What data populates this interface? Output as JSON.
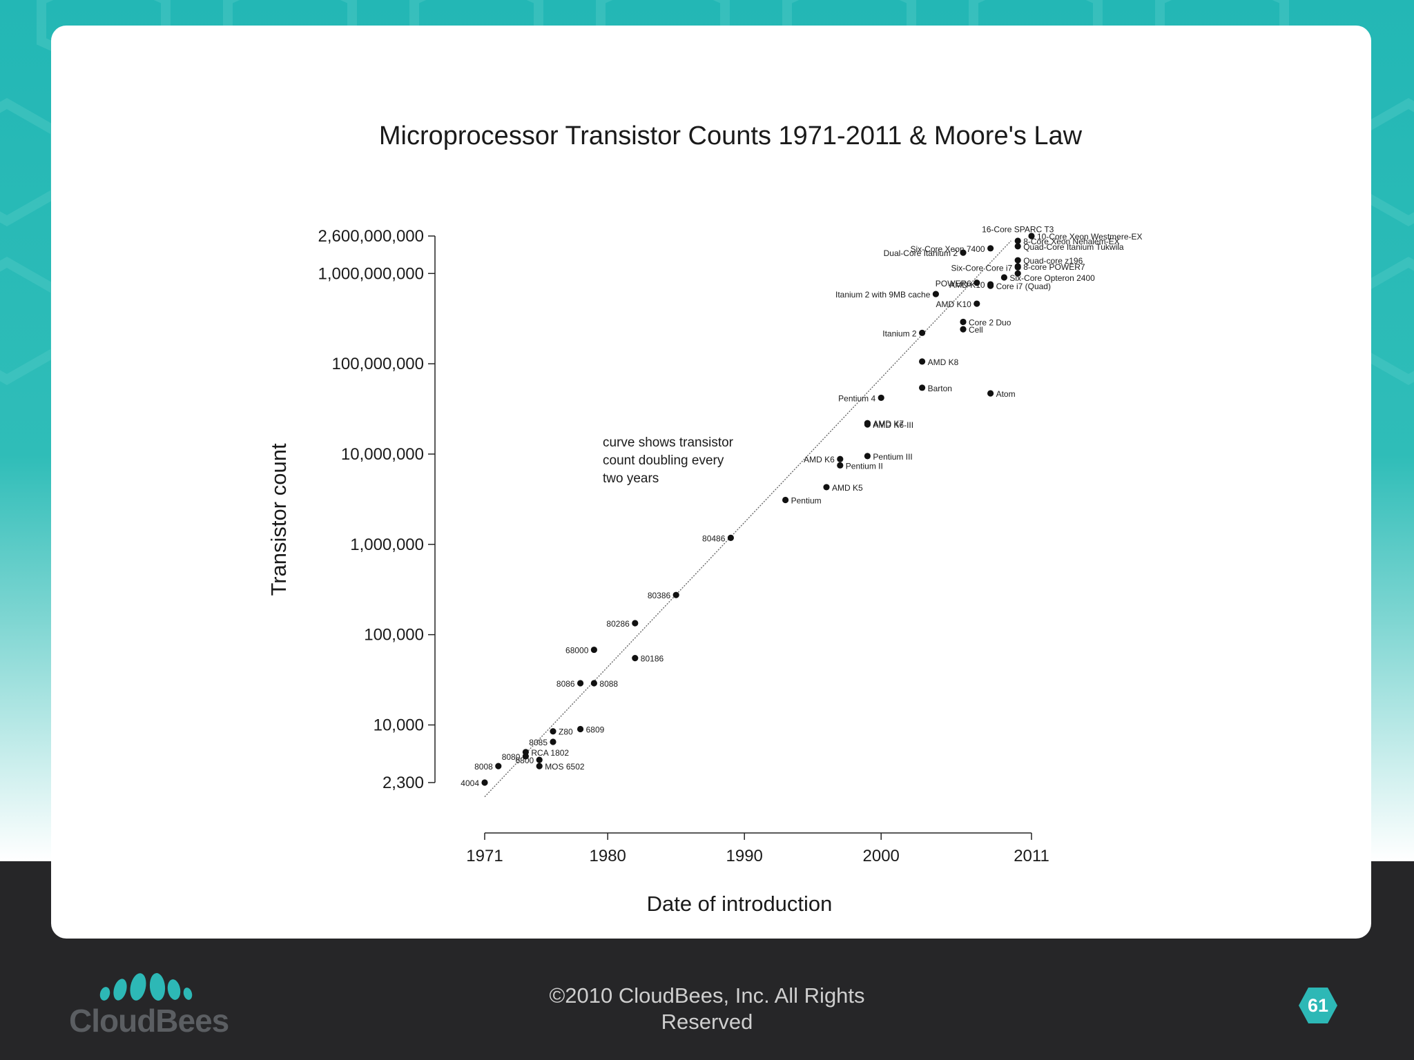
{
  "colors": {
    "accent": "#23b7b5",
    "footer_bg": "#262628",
    "text": "#1a1a1a"
  },
  "footer": {
    "copyright_line1": "©2010 CloudBees, Inc. All Rights",
    "copyright_line2": "Reserved",
    "logo_text": "CloudBees",
    "page_number": "61"
  },
  "chart_data": {
    "type": "scatter",
    "title": "Microprocessor Transistor Counts 1971-2011 & Moore's Law",
    "xlabel": "Date of introduction",
    "ylabel": "Transistor count",
    "scale": {
      "x": "linear",
      "y": "log"
    },
    "xlim": [
      1971,
      2011
    ],
    "ylim": [
      2300,
      2600000000
    ],
    "x_ticks": [
      "1971",
      "1980",
      "1990",
      "2000",
      "2011"
    ],
    "y_ticks": [
      {
        "value": 2600000000,
        "label": "2,600,000,000"
      },
      {
        "value": 1000000000,
        "label": "1,000,000,000"
      },
      {
        "value": 100000000,
        "label": "100,000,000"
      },
      {
        "value": 10000000,
        "label": "10,000,000"
      },
      {
        "value": 1000000,
        "label": "1,000,000"
      },
      {
        "value": 100000,
        "label": "100,000"
      },
      {
        "value": 10000,
        "label": "10,000"
      },
      {
        "value": 2300,
        "label": "2,300"
      }
    ],
    "annotation": [
      "curve shows transistor",
      "count doubling every",
      "two years"
    ],
    "trend_line": {
      "x": [
        1971,
        2009.5
      ],
      "y": [
        1600,
        2300000000
      ]
    },
    "points": [
      {
        "label": "4004",
        "x": 1971.0,
        "y": 2300,
        "side": "left"
      },
      {
        "label": "8008",
        "x": 1972.0,
        "y": 3500,
        "side": "left"
      },
      {
        "label": "8080",
        "x": 1974.0,
        "y": 4500,
        "side": "left"
      },
      {
        "label": "RCA 1802",
        "x": 1974.0,
        "y": 5000,
        "side": "right"
      },
      {
        "label": "MOS 6502",
        "x": 1975.0,
        "y": 3500,
        "side": "right"
      },
      {
        "label": "6800",
        "x": 1975.0,
        "y": 4100,
        "side": "left"
      },
      {
        "label": "8085",
        "x": 1976.0,
        "y": 6500,
        "side": "left"
      },
      {
        "label": "Z80",
        "x": 1976.0,
        "y": 8500,
        "side": "right"
      },
      {
        "label": "6809",
        "x": 1978.0,
        "y": 9000,
        "side": "right"
      },
      {
        "label": "8086",
        "x": 1978.0,
        "y": 29000,
        "side": "left"
      },
      {
        "label": "8088",
        "x": 1979.0,
        "y": 29000,
        "side": "right"
      },
      {
        "label": "68000",
        "x": 1979.0,
        "y": 68000,
        "side": "left"
      },
      {
        "label": "80186",
        "x": 1982.0,
        "y": 55000,
        "side": "right"
      },
      {
        "label": "80286",
        "x": 1982.0,
        "y": 134000,
        "side": "left"
      },
      {
        "label": "80386",
        "x": 1985.0,
        "y": 275000,
        "side": "left"
      },
      {
        "label": "80486",
        "x": 1989.0,
        "y": 1180000,
        "side": "left"
      },
      {
        "label": "Pentium",
        "x": 1993.0,
        "y": 3100000,
        "side": "right"
      },
      {
        "label": "AMD K5",
        "x": 1996.0,
        "y": 4300000,
        "side": "right"
      },
      {
        "label": "Pentium II",
        "x": 1997.0,
        "y": 7500000,
        "side": "right"
      },
      {
        "label": "AMD K6",
        "x": 1997.0,
        "y": 8800000,
        "side": "left"
      },
      {
        "label": "Pentium III",
        "x": 1999.0,
        "y": 9500000,
        "side": "right"
      },
      {
        "label": "AMD K6-III",
        "x": 1999.0,
        "y": 21300000,
        "side": "right"
      },
      {
        "label": "AMD K7",
        "x": 1999.0,
        "y": 22000000,
        "side": "right"
      },
      {
        "label": "Pentium 4",
        "x": 2000.0,
        "y": 42000000,
        "side": "left"
      },
      {
        "label": "Barton",
        "x": 2003.0,
        "y": 54300000,
        "side": "right"
      },
      {
        "label": "AMD K8",
        "x": 2003.0,
        "y": 105900000,
        "side": "right"
      },
      {
        "label": "Itanium 2",
        "x": 2003.0,
        "y": 220000000,
        "side": "left"
      },
      {
        "label": "Itanium 2 with 9MB cache",
        "x": 2004.0,
        "y": 592000000,
        "side": "left"
      },
      {
        "label": "Cell",
        "x": 2006.0,
        "y": 241000000,
        "side": "right"
      },
      {
        "label": "Core 2 Duo",
        "x": 2006.0,
        "y": 291000000,
        "side": "right"
      },
      {
        "label": "AMD K10",
        "x": 2007.0,
        "y": 463000000,
        "side": "left"
      },
      {
        "label": "Atom",
        "x": 2008.0,
        "y": 47000000,
        "side": "right"
      },
      {
        "label": "POWER6",
        "x": 2007.0,
        "y": 789000000,
        "side": "left"
      },
      {
        "label": "Dual-Core Itanium 2",
        "x": 2006.0,
        "y": 1700000000,
        "side": "left"
      },
      {
        "label": "Six-Core Xeon 7400",
        "x": 2008.0,
        "y": 1900000000,
        "side": "left"
      },
      {
        "label": "AMD K10",
        "x": 2008.0,
        "y": 758000000,
        "side": "left"
      },
      {
        "label": "Core i7 (Quad)",
        "x": 2008.0,
        "y": 731000000,
        "side": "right"
      },
      {
        "label": "Six-Core Opteron 2400",
        "x": 2009.0,
        "y": 904000000,
        "side": "right"
      },
      {
        "label": "8-Core Xeon Nehalem-EX",
        "x": 2010.0,
        "y": 2300000000,
        "side": "right"
      },
      {
        "label": "Quad-Core Itanium Tukwila",
        "x": 2010.0,
        "y": 2000000000,
        "side": "right"
      },
      {
        "label": "Quad-core z196",
        "x": 2010.0,
        "y": 1400000000,
        "side": "right"
      },
      {
        "label": "8-core POWER7",
        "x": 2010.0,
        "y": 1200000000,
        "side": "right"
      },
      {
        "label": "Six-Core Core i7",
        "x": 2010.0,
        "y": 1170000000,
        "side": "left"
      },
      {
        "label": "16-Core SPARC T3",
        "x": 2010.0,
        "y": 1000000000,
        "side": "above"
      },
      {
        "label": "10-Core Xeon Westmere-EX",
        "x": 2011.0,
        "y": 2600000000,
        "side": "right"
      }
    ]
  }
}
